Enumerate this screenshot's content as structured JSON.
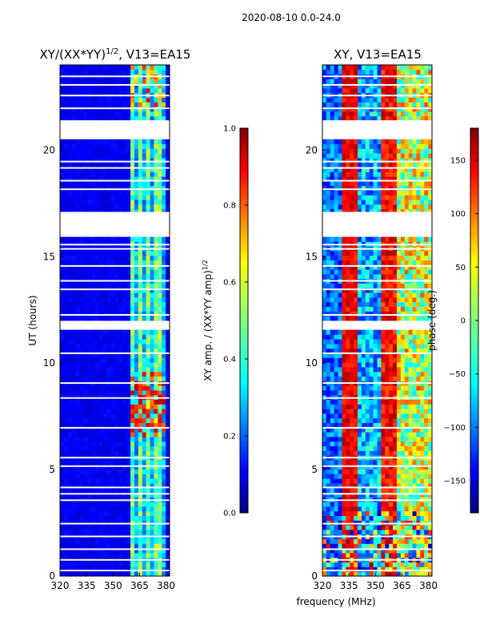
{
  "suptitle": "2020-08-10 0.0-24.0",
  "xlabel": "frequency (MHz)",
  "colors": {
    "jet": [
      "#00007f",
      "#0000ff",
      "#007fff",
      "#00ffff",
      "#7fff7f",
      "#ffff00",
      "#ff7f00",
      "#ff0000",
      "#7f0000"
    ]
  },
  "chart_data": [
    {
      "type": "heatmap",
      "title": "XY/(XX*YY)",
      "title_superscript": "1/2",
      "title_suffix": ", V13=EA15",
      "xlabel": "",
      "ylabel": "UT (hours)",
      "xlim": [
        320,
        382
      ],
      "ylim": [
        0,
        24
      ],
      "xticks": [
        320,
        335,
        350,
        365,
        380
      ],
      "yticks": [
        0,
        5,
        10,
        15,
        20
      ],
      "colorbar": {
        "label": "XY amp. / (XX*YY amp)",
        "label_superscript": "1/2",
        "range": [
          0.0,
          1.0
        ],
        "ticks": [
          "0.0",
          "0.2",
          "0.4",
          "0.6",
          "0.8",
          "1.0"
        ]
      },
      "flagged_hours": [
        [
          16.0,
          17.1
        ],
        [
          20.6,
          21.4
        ],
        [
          11.6,
          11.9
        ]
      ]
    },
    {
      "type": "heatmap",
      "title": "XY, V13=EA15",
      "xlabel": "",
      "ylabel": "",
      "xlim": [
        320,
        382
      ],
      "ylim": [
        0,
        24
      ],
      "xticks": [
        320,
        335,
        350,
        365,
        380
      ],
      "yticks": [
        0,
        5,
        10,
        15,
        20
      ],
      "colorbar": {
        "label": "phase (deg.)",
        "range": [
          -180,
          180
        ],
        "ticks": [
          "150",
          "100",
          "50",
          "0",
          "−50",
          "−100",
          "−150"
        ]
      },
      "flagged_hours": [
        [
          16.0,
          17.1
        ],
        [
          20.6,
          21.4
        ],
        [
          11.6,
          11.9
        ]
      ]
    }
  ]
}
